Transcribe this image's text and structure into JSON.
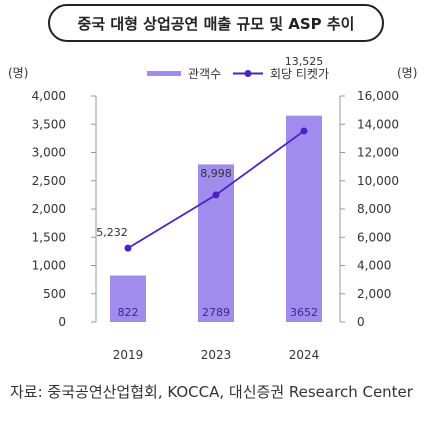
{
  "title": "중국 대형 상업공연 매출 규모 및 ASP 추이",
  "source": "자료: 중국공연산업협회, KOCCA, 대신증권 Research Center",
  "colors": {
    "bar": "#9f8cec",
    "bar_label": "#3b2a8f",
    "line": "#4a22c4",
    "axis_text": "#333333",
    "tick": "#999999"
  },
  "chart_data": {
    "type": "bar",
    "categories": [
      "2019",
      "2023",
      "2024"
    ],
    "series": [
      {
        "name": "관객수",
        "type": "bar",
        "axis": "left",
        "values": [
          822,
          2789,
          3652
        ]
      },
      {
        "name": "회당 티켓가",
        "type": "line",
        "axis": "right",
        "values": [
          5232,
          8998,
          13525
        ]
      }
    ],
    "left_axis": {
      "unit": "(명)",
      "ylim": [
        0,
        4000
      ],
      "ticks": [
        "0",
        "500",
        "1,000",
        "1,500",
        "2,000",
        "2,500",
        "3,000",
        "3,500",
        "4,000"
      ]
    },
    "right_axis": {
      "unit": "(명)",
      "ylim": [
        0,
        16000
      ],
      "ticks": [
        "0",
        "2,000",
        "4,000",
        "6,000",
        "8,000",
        "10,000",
        "12,000",
        "14,000",
        "16,000"
      ]
    },
    "bar_labels": [
      "822",
      "2789",
      "3652"
    ],
    "line_labels": [
      "5,232",
      "8,998",
      "13,525"
    ],
    "legend_position": "top"
  }
}
